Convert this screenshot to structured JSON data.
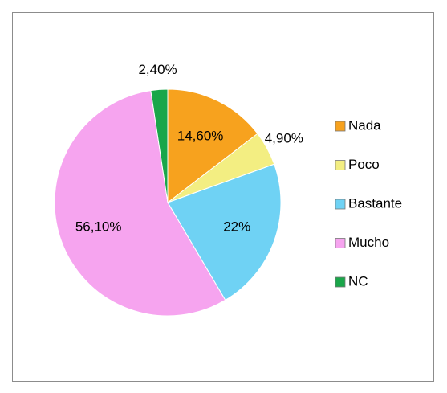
{
  "chart_data": {
    "type": "pie",
    "categories": [
      "Nada",
      "Poco",
      "Bastante",
      "Mucho",
      "NC"
    ],
    "values": [
      14.6,
      4.9,
      22,
      56.1,
      2.4
    ],
    "value_labels": [
      "14,60%",
      "4,90%",
      "22%",
      "56,10%",
      "2,40%"
    ],
    "colors": [
      "#f7a21e",
      "#f3ee82",
      "#6fd2f4",
      "#f6a4ef",
      "#1aa64a"
    ],
    "legend": "right"
  }
}
